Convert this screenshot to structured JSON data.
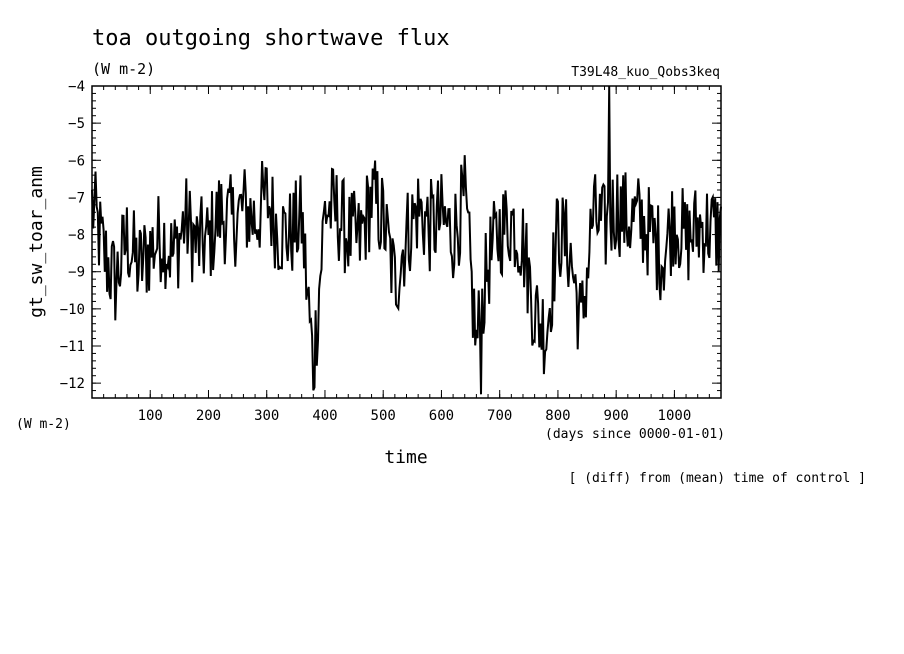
{
  "title": "toa outgoing shortwave flux",
  "units": "(W m-2)",
  "run_name": "T39L48_kuo_Qobs3keq",
  "ylabel": "gt_sw_toar_anm",
  "y_units": "(W m-2)",
  "xlabel": "time",
  "x_units": "(days since 0000-01-01)",
  "note": "[ (diff) from (mean) time of control ]",
  "chart_data": {
    "type": "line",
    "title": "toa outgoing shortwave flux",
    "xlabel": "time",
    "ylabel": "gt_sw_toar_anm",
    "xlim": [
      0,
      1080
    ],
    "ylim": [
      -12.4,
      -4
    ],
    "x_ticks": [
      100,
      200,
      300,
      400,
      500,
      600,
      700,
      800,
      900,
      1000
    ],
    "y_ticks": [
      -4,
      -5,
      -6,
      -7,
      -8,
      -9,
      -10,
      -11,
      -12
    ],
    "grid": false,
    "series": [
      {
        "x": [
          0,
          20,
          40,
          60,
          80,
          100,
          120,
          140,
          160,
          180,
          200,
          220,
          240,
          260,
          280,
          300,
          320,
          340,
          360,
          380,
          400,
          420,
          440,
          460,
          480,
          500,
          520,
          540,
          560,
          580,
          600,
          620,
          640,
          660,
          680,
          700,
          720,
          740,
          760,
          780,
          800,
          820,
          840,
          860,
          880,
          900,
          920,
          940,
          960,
          980,
          1000,
          1020,
          1040,
          1060,
          1080
        ],
        "values": [
          -7.2,
          -8.5,
          -9.3,
          -8.1,
          -8.9,
          -8.4,
          -8.0,
          -8.6,
          -7.6,
          -8.3,
          -8.2,
          -7.4,
          -7.7,
          -7.3,
          -7.6,
          -7.0,
          -7.9,
          -8.0,
          -7.6,
          -11.6,
          -7.3,
          -7.4,
          -8.0,
          -8.2,
          -7.0,
          -7.6,
          -9.3,
          -8.0,
          -7.3,
          -7.8,
          -7.6,
          -8.0,
          -7.1,
          -11.0,
          -8.8,
          -7.9,
          -7.6,
          -8.2,
          -10.1,
          -10.6,
          -7.9,
          -8.4,
          -10.5,
          -7.5,
          -7.9,
          -7.2,
          -7.6,
          -7.6,
          -8.0,
          -8.6,
          -7.5,
          -8.2,
          -7.8,
          -7.8,
          -8.0
        ]
      }
    ]
  }
}
